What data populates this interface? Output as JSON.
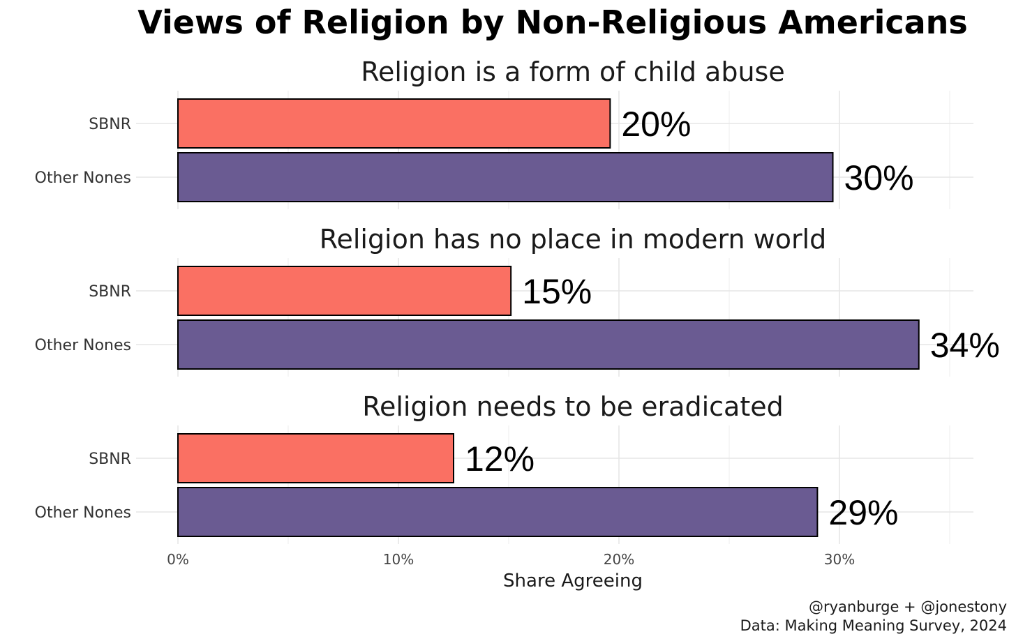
{
  "chart_data": {
    "type": "bar",
    "orientation": "horizontal",
    "title": "Views of Religion by Non-Religious Americans",
    "xlabel": "Share Agreeing",
    "xlim": [
      0,
      0.35
    ],
    "xticks": [
      0,
      0.1,
      0.2,
      0.3
    ],
    "xtick_labels": [
      "0%",
      "10%",
      "20%",
      "30%"
    ],
    "categories": [
      "SBNR",
      "Other Nones"
    ],
    "colors": {
      "SBNR": "#fa7063",
      "Other Nones": "#6a5b92"
    },
    "facets": [
      {
        "title": "Religion is a form of child abuse",
        "values": [
          0.196,
          0.297
        ],
        "labels": [
          "20%",
          "30%"
        ]
      },
      {
        "title": "Religion has no place in modern world",
        "values": [
          0.151,
          0.336
        ],
        "labels": [
          "15%",
          "34%"
        ]
      },
      {
        "title": "Religion needs to be eradicated",
        "values": [
          0.125,
          0.29
        ],
        "labels": [
          "12%",
          "29%"
        ]
      }
    ],
    "caption": [
      "@ryanburge + @jonestony",
      "Data: Making Meaning Survey, 2024"
    ]
  }
}
